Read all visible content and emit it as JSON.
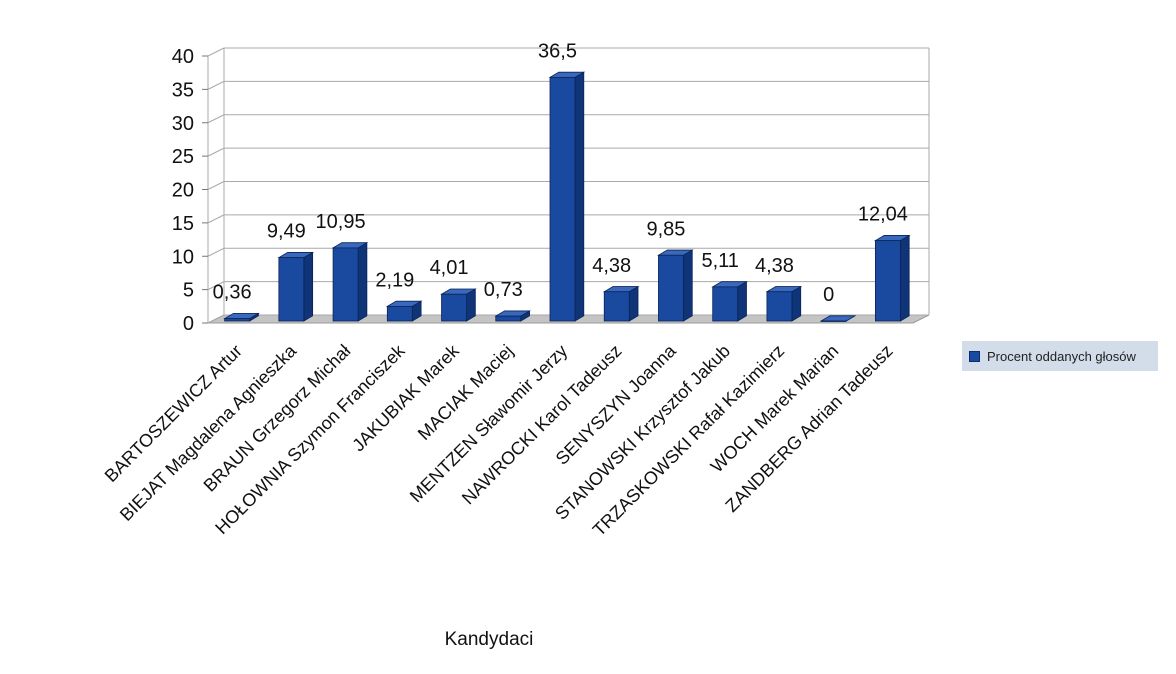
{
  "chart_data": {
    "type": "bar",
    "categories": [
      "BARTOSZEWICZ Artur",
      "BIEJAT Magdalena Agnieszka",
      "BRAUN Grzegorz Michał",
      "HOŁOWNIA Szymon Franciszek",
      "JAKUBIAK Marek",
      "MACIAK Maciej",
      "MENTZEN Sławomir Jerzy",
      "NAWROCKI Karol Tadeusz",
      "SENYSZYN Joanna",
      "STANOWSKI Krzysztof Jakub",
      "TRZASKOWSKI Rafał Kazimierz",
      "WOCH Marek Marian",
      "ZANDBERG Adrian Tadeusz"
    ],
    "series": [
      {
        "name": "Procent oddanych głosów",
        "values": [
          0.36,
          9.49,
          10.95,
          2.19,
          4.01,
          0.73,
          36.5,
          4.38,
          9.85,
          5.11,
          4.38,
          0,
          12.04
        ]
      }
    ],
    "data_labels": [
      "0,36",
      "9,49",
      "10,95",
      "2,19",
      "4,01",
      "0,73",
      "36,5",
      "4,38",
      "9,85",
      "5,11",
      "4,38",
      "0",
      "12,04"
    ],
    "y_ticks": [
      "0",
      "5",
      "10",
      "15",
      "20",
      "25",
      "30",
      "35",
      "40"
    ],
    "ylim": [
      0,
      40
    ],
    "xlabel": "Kandydaci",
    "ylabel": "",
    "grid": true,
    "legend_position": "right",
    "colors": {
      "bar_front": "#1a4aa0",
      "bar_side": "#0f3478",
      "bar_top": "#3a68bd",
      "grid": "#a9a9a9",
      "legend_background": "#d3dce9"
    }
  }
}
